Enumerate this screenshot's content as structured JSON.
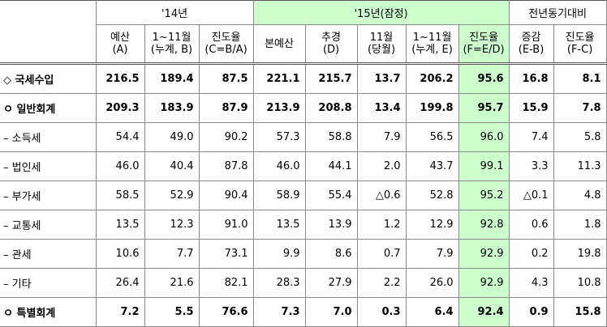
{
  "table": {
    "header_groups": [
      "'14년",
      "'15년(잠정)",
      "전년동기대비"
    ],
    "columns": [
      [
        "예산",
        "(A)"
      ],
      [
        "1~11월",
        "(누계, B)"
      ],
      [
        "진도율",
        "(C=B/A)"
      ],
      [
        "본예산"
      ],
      [
        "추경",
        "(D)"
      ],
      [
        "11월",
        "(당월)"
      ],
      [
        "1~11월",
        "(누계, E)"
      ],
      [
        "진도율",
        "(F=E/D)"
      ],
      [
        "증감",
        "(E-B)"
      ],
      [
        "진도율",
        "(F-C)"
      ]
    ],
    "highlight_color": "#ccffcc",
    "rows": [
      {
        "label": "◇ 국세수입",
        "bold": true,
        "cells": [
          "216.5",
          "189.4",
          "87.5",
          "221.1",
          "215.7",
          "13.7",
          "206.2",
          "95.6",
          "16.8",
          "8.1"
        ]
      },
      {
        "label": "ㅇ 일반회계",
        "bold": true,
        "cells": [
          "209.3",
          "183.9",
          "87.9",
          "213.9",
          "208.8",
          "13.4",
          "199.8",
          "95.7",
          "15.9",
          "7.8"
        ]
      },
      {
        "label": "– 소득세",
        "bold": false,
        "cells": [
          "54.4",
          "49.0",
          "90.2",
          "57.3",
          "58.8",
          "7.9",
          "56.5",
          "96.0",
          "7.4",
          "5.8"
        ]
      },
      {
        "label": "– 법인세",
        "bold": false,
        "cells": [
          "46.0",
          "40.4",
          "87.8",
          "46.0",
          "44.1",
          "2.0",
          "43.7",
          "99.1",
          "3.3",
          "11.3"
        ]
      },
      {
        "label": "– 부가세",
        "bold": false,
        "cells": [
          "58.5",
          "52.9",
          "90.4",
          "58.9",
          "55.4",
          "△0.6",
          "52.8",
          "95.2",
          "△0.1",
          "4.8"
        ]
      },
      {
        "label": "– 교통세",
        "bold": false,
        "cells": [
          "13.5",
          "12.3",
          "91.0",
          "13.5",
          "13.9",
          "1.2",
          "12.9",
          "92.8",
          "0.6",
          "1.8"
        ]
      },
      {
        "label": "– 관세",
        "bold": false,
        "cells": [
          "10.6",
          "7.7",
          "73.1",
          "9.9",
          "8.6",
          "0.7",
          "7.9",
          "92.9",
          "0.2",
          "19.8"
        ]
      },
      {
        "label": "– 기타",
        "bold": false,
        "cells": [
          "26.4",
          "21.6",
          "82.1",
          "28.3",
          "27.9",
          "2.2",
          "26.0",
          "92.9",
          "4.3",
          "10.8"
        ]
      },
      {
        "label": "ㅇ 특별회계",
        "bold": true,
        "cells": [
          "7.2",
          "5.5",
          "76.6",
          "7.3",
          "7.0",
          "0.3",
          "6.4",
          "92.4",
          "0.9",
          "15.8"
        ]
      }
    ]
  }
}
